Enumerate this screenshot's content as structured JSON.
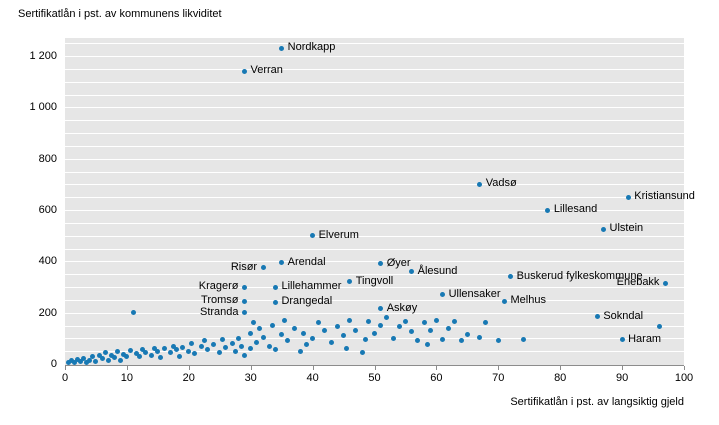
{
  "chart_data": {
    "type": "scatter",
    "title": "",
    "xlabel": "Sertifikatlån i pst. av langsiktig gjeld",
    "ylabel": "Sertifikatlån i pst. av kommunens likviditet",
    "xlim": [
      0,
      100
    ],
    "ylim": [
      0,
      1200
    ],
    "x_ticks": [
      0,
      10,
      20,
      30,
      40,
      50,
      60,
      70,
      80,
      90,
      100
    ],
    "y_ticks": [
      0,
      200,
      400,
      600,
      800,
      1000,
      1200
    ],
    "y_tick_labels": [
      "0",
      "200",
      "400",
      "600",
      "800",
      "1 000",
      "1 200"
    ],
    "minor_grid_step_y": 50,
    "grid": true,
    "legend": "none",
    "point_color": "#1879b4",
    "plot_bg": "#e6e6e6",
    "grid_color": "#ffffff",
    "labeled_points": [
      {
        "name": "Nordkapp",
        "x": 35,
        "y": 1230,
        "label_side": "right"
      },
      {
        "name": "Verran",
        "x": 29,
        "y": 1140,
        "label_side": "right"
      },
      {
        "name": "Vadsø",
        "x": 67,
        "y": 700,
        "label_side": "right"
      },
      {
        "name": "Kristiansund",
        "x": 91,
        "y": 650,
        "label_side": "right"
      },
      {
        "name": "Lillesand",
        "x": 78,
        "y": 600,
        "label_side": "right"
      },
      {
        "name": "Ulstein",
        "x": 87,
        "y": 525,
        "label_side": "right"
      },
      {
        "name": "Elverum",
        "x": 40,
        "y": 500,
        "label_side": "right"
      },
      {
        "name": "Arendal",
        "x": 35,
        "y": 395,
        "label_side": "right"
      },
      {
        "name": "Øyer",
        "x": 51,
        "y": 390,
        "label_side": "right"
      },
      {
        "name": "Risør",
        "x": 32,
        "y": 375,
        "label_side": "left"
      },
      {
        "name": "Ålesund",
        "x": 56,
        "y": 360,
        "label_side": "right"
      },
      {
        "name": "Buskerud fylkeskommune",
        "x": 72,
        "y": 340,
        "label_side": "right"
      },
      {
        "name": "Tingvoll",
        "x": 46,
        "y": 320,
        "label_side": "right"
      },
      {
        "name": "Enebakk",
        "x": 97,
        "y": 315,
        "label_side": "left"
      },
      {
        "name": "Lillehammer",
        "x": 34,
        "y": 300,
        "label_side": "right"
      },
      {
        "name": "Kragerø",
        "x": 29,
        "y": 300,
        "label_side": "left"
      },
      {
        "name": "Ullensaker",
        "x": 61,
        "y": 270,
        "label_side": "right"
      },
      {
        "name": "Tromsø",
        "x": 29,
        "y": 245,
        "label_side": "left"
      },
      {
        "name": "Melhus",
        "x": 71,
        "y": 245,
        "label_side": "right"
      },
      {
        "name": "Drangedal",
        "x": 34,
        "y": 240,
        "label_side": "right"
      },
      {
        "name": "Askøy",
        "x": 51,
        "y": 215,
        "label_side": "right"
      },
      {
        "name": "Stranda",
        "x": 29,
        "y": 200,
        "label_side": "left"
      },
      {
        "name": "Sokndal",
        "x": 86,
        "y": 185,
        "label_side": "right"
      },
      {
        "name": "Haram",
        "x": 90,
        "y": 95,
        "label_side": "right"
      }
    ],
    "unlabeled_points": [
      [
        0.5,
        5
      ],
      [
        1,
        12
      ],
      [
        1.5,
        4
      ],
      [
        2,
        18
      ],
      [
        2.5,
        8
      ],
      [
        3,
        22
      ],
      [
        3.5,
        6
      ],
      [
        4,
        15
      ],
      [
        4.5,
        30
      ],
      [
        5,
        10
      ],
      [
        5.5,
        35
      ],
      [
        6,
        20
      ],
      [
        6.5,
        45
      ],
      [
        7,
        12
      ],
      [
        7.5,
        32
      ],
      [
        8,
        25
      ],
      [
        8.5,
        50
      ],
      [
        9,
        15
      ],
      [
        9.5,
        38
      ],
      [
        10,
        28
      ],
      [
        10.5,
        52
      ],
      [
        11,
        200
      ],
      [
        11.5,
        42
      ],
      [
        12,
        30
      ],
      [
        12.5,
        58
      ],
      [
        13,
        45
      ],
      [
        14,
        35
      ],
      [
        14.5,
        62
      ],
      [
        15,
        50
      ],
      [
        15.5,
        25
      ],
      [
        16,
        60
      ],
      [
        17,
        45
      ],
      [
        17.5,
        70
      ],
      [
        18,
        55
      ],
      [
        18.5,
        30
      ],
      [
        19,
        65
      ],
      [
        20,
        50
      ],
      [
        20.5,
        78
      ],
      [
        21,
        40
      ],
      [
        22,
        68
      ],
      [
        22.5,
        90
      ],
      [
        23,
        55
      ],
      [
        24,
        75
      ],
      [
        25,
        45
      ],
      [
        25.5,
        95
      ],
      [
        26,
        65
      ],
      [
        27,
        80
      ],
      [
        27.5,
        50
      ],
      [
        28,
        100
      ],
      [
        28.5,
        70
      ],
      [
        29,
        35
      ],
      [
        30,
        60
      ],
      [
        30,
        120
      ],
      [
        30.5,
        160
      ],
      [
        31,
        85
      ],
      [
        31.5,
        140
      ],
      [
        32,
        105
      ],
      [
        33,
        70
      ],
      [
        33.5,
        150
      ],
      [
        34,
        55
      ],
      [
        35,
        115
      ],
      [
        35.5,
        170
      ],
      [
        36,
        90
      ],
      [
        37,
        140
      ],
      [
        38,
        50
      ],
      [
        38.5,
        120
      ],
      [
        39,
        75
      ],
      [
        40,
        100
      ],
      [
        41,
        160
      ],
      [
        42,
        130
      ],
      [
        43,
        85
      ],
      [
        44,
        145
      ],
      [
        45,
        110
      ],
      [
        45.5,
        60
      ],
      [
        46,
        170
      ],
      [
        47,
        130
      ],
      [
        48,
        45
      ],
      [
        48.5,
        95
      ],
      [
        49,
        165
      ],
      [
        50,
        120
      ],
      [
        51,
        150
      ],
      [
        52,
        180
      ],
      [
        53,
        100
      ],
      [
        54,
        145
      ],
      [
        55,
        165
      ],
      [
        56,
        125
      ],
      [
        57,
        90
      ],
      [
        58,
        160
      ],
      [
        58.5,
        75
      ],
      [
        59,
        130
      ],
      [
        60,
        170
      ],
      [
        61,
        95
      ],
      [
        62,
        140
      ],
      [
        63,
        165
      ],
      [
        64,
        90
      ],
      [
        65,
        115
      ],
      [
        67,
        105
      ],
      [
        68,
        160
      ],
      [
        70,
        90
      ],
      [
        74,
        95
      ],
      [
        96,
        145
      ]
    ]
  }
}
